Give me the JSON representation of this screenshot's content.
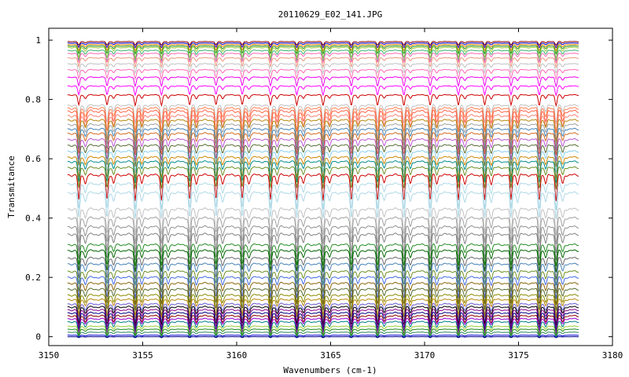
{
  "chart_data": {
    "type": "line",
    "title": "20110629_E02_141.JPG",
    "xlabel": "Wavenumbers (cm-1)",
    "ylabel": "Transmitance",
    "xlim": [
      3150,
      3180
    ],
    "ylim": [
      -0.03,
      1.04
    ],
    "xticks": [
      3150,
      3155,
      3160,
      3165,
      3170,
      3175,
      3180
    ],
    "xtick_labels": [
      "3150",
      "3155",
      "3160",
      "3165",
      "3170",
      "3175",
      "3180"
    ],
    "yticks": [
      0,
      0.2,
      0.4,
      0.6,
      0.8,
      1
    ],
    "ytick_labels": [
      "0",
      "0.2",
      "0.4",
      "0.6",
      "0.8",
      "1"
    ],
    "grid": false,
    "legend": "none",
    "x_range": [
      3151,
      3178.2
    ],
    "absorption_lines": [
      3151.6,
      3153.1,
      3154.6,
      3156.0,
      3157.5,
      3158.9,
      3160.3,
      3161.8,
      3163.2,
      3164.6,
      3166.1,
      3167.5,
      3168.9,
      3170.3,
      3171.8,
      3173.2,
      3174.6,
      3176.1,
      3177.0
    ],
    "series": [
      {
        "baseline": 0.995,
        "depth": 0.012,
        "color": "#8b0000"
      },
      {
        "baseline": 0.99,
        "depth": 0.015,
        "color": "#0000cd"
      },
      {
        "baseline": 0.985,
        "depth": 0.02,
        "color": "#ff8c00"
      },
      {
        "baseline": 0.98,
        "depth": 0.025,
        "color": "#228b22"
      },
      {
        "baseline": 0.975,
        "depth": 0.035,
        "color": "#9acd32"
      },
      {
        "baseline": 0.965,
        "depth": 0.035,
        "color": "#3cb371"
      },
      {
        "baseline": 0.955,
        "depth": 0.03,
        "color": "#ff69b4"
      },
      {
        "baseline": 0.94,
        "depth": 0.03,
        "color": "#e9967a"
      },
      {
        "baseline": 0.92,
        "depth": 0.03,
        "color": "#c0c0c0"
      },
      {
        "baseline": 0.9,
        "depth": 0.03,
        "color": "#ff69b4"
      },
      {
        "baseline": 0.875,
        "depth": 0.03,
        "color": "#ee00ee"
      },
      {
        "baseline": 0.845,
        "depth": 0.03,
        "color": "#ff00ff"
      },
      {
        "baseline": 0.815,
        "depth": 0.035,
        "color": "#cc0000"
      },
      {
        "baseline": 0.78,
        "depth": 0.06,
        "color": "#c0c0c0"
      },
      {
        "baseline": 0.77,
        "depth": 0.08,
        "color": "#ff7f50"
      },
      {
        "baseline": 0.76,
        "depth": 0.1,
        "color": "#ff6347"
      },
      {
        "baseline": 0.745,
        "depth": 0.1,
        "color": "#fa8072"
      },
      {
        "baseline": 0.73,
        "depth": 0.07,
        "color": "#b8860b"
      },
      {
        "baseline": 0.715,
        "depth": 0.07,
        "color": "#a0a0a0"
      },
      {
        "baseline": 0.7,
        "depth": 0.07,
        "color": "#4682b4"
      },
      {
        "baseline": 0.685,
        "depth": 0.07,
        "color": "#d2691e"
      },
      {
        "baseline": 0.665,
        "depth": 0.07,
        "color": "#ba55d3"
      },
      {
        "baseline": 0.645,
        "depth": 0.07,
        "color": "#556b2f"
      },
      {
        "baseline": 0.625,
        "depth": 0.07,
        "color": "#87ceeb"
      },
      {
        "baseline": 0.605,
        "depth": 0.07,
        "color": "#cd8500"
      },
      {
        "baseline": 0.59,
        "depth": 0.07,
        "color": "#008b8b"
      },
      {
        "baseline": 0.57,
        "depth": 0.07,
        "color": "#6b8e23"
      },
      {
        "baseline": 0.545,
        "depth": 0.085,
        "color": "#cd0000"
      },
      {
        "baseline": 0.515,
        "depth": 0.085,
        "color": "#add8e6"
      },
      {
        "baseline": 0.485,
        "depth": 0.085,
        "color": "#add8e6"
      },
      {
        "baseline": 0.43,
        "depth": 0.085,
        "color": "#c0c0c0"
      },
      {
        "baseline": 0.4,
        "depth": 0.085,
        "color": "#a0a0a0"
      },
      {
        "baseline": 0.37,
        "depth": 0.085,
        "color": "#909090"
      },
      {
        "baseline": 0.345,
        "depth": 0.085,
        "color": "#808080"
      },
      {
        "baseline": 0.31,
        "depth": 0.07,
        "color": "#228b22"
      },
      {
        "baseline": 0.29,
        "depth": 0.07,
        "color": "#006400"
      },
      {
        "baseline": 0.265,
        "depth": 0.07,
        "color": "#696969"
      },
      {
        "baseline": 0.245,
        "depth": 0.07,
        "color": "#4682b4"
      },
      {
        "baseline": 0.22,
        "depth": 0.07,
        "color": "#6b8e23"
      },
      {
        "baseline": 0.2,
        "depth": 0.07,
        "color": "#4169e1"
      },
      {
        "baseline": 0.18,
        "depth": 0.07,
        "color": "#8b6508"
      },
      {
        "baseline": 0.16,
        "depth": 0.07,
        "color": "#556b2f"
      },
      {
        "baseline": 0.14,
        "depth": 0.07,
        "color": "#8b8b00"
      },
      {
        "baseline": 0.125,
        "depth": 0.06,
        "color": "#b8860b"
      },
      {
        "baseline": 0.11,
        "depth": 0.06,
        "color": "#6a5acd"
      },
      {
        "baseline": 0.1,
        "depth": 0.06,
        "color": "#000000"
      },
      {
        "baseline": 0.09,
        "depth": 0.06,
        "color": "#8b008b"
      },
      {
        "baseline": 0.08,
        "depth": 0.06,
        "color": "#000080"
      },
      {
        "baseline": 0.07,
        "depth": 0.06,
        "color": "#8b0000"
      },
      {
        "baseline": 0.06,
        "depth": 0.05,
        "color": "#9400d3"
      },
      {
        "baseline": 0.05,
        "depth": 0.05,
        "color": "#008080"
      },
      {
        "baseline": 0.035,
        "depth": 0.03,
        "color": "#9acd32"
      },
      {
        "baseline": 0.025,
        "depth": 0.02,
        "color": "#228b22"
      },
      {
        "baseline": 0.015,
        "depth": 0.015,
        "color": "#2e8b57"
      },
      {
        "baseline": 0.005,
        "depth": 0.008,
        "color": "#0000cd"
      },
      {
        "baseline": 0.0,
        "depth": 0.003,
        "color": "#00008b"
      }
    ]
  }
}
